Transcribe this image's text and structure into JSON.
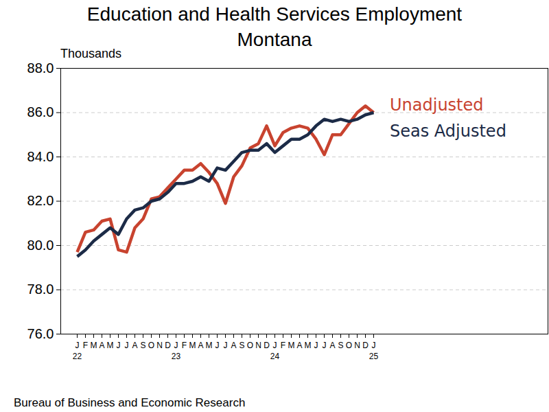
{
  "chart_data": {
    "type": "line",
    "title": "Education and Health Services Employment",
    "subtitle": "Montana",
    "ylabel": "Thousands",
    "caption": "Bureau of Business and Economic Research",
    "categories": [
      "J\n22",
      "F",
      "M",
      "A",
      "M",
      "J",
      "J",
      "A",
      "S",
      "O",
      "N",
      "D",
      "J\n23",
      "F",
      "M",
      "A",
      "M",
      "J",
      "J",
      "A",
      "S",
      "O",
      "N",
      "D",
      "J\n24",
      "F",
      "M",
      "A",
      "M",
      "J",
      "J",
      "A",
      "S",
      "O",
      "N",
      "D",
      "J\n25"
    ],
    "series": [
      {
        "name": "Unadjusted",
        "color": "#c8432f",
        "values": [
          79.7,
          80.6,
          80.7,
          81.1,
          81.2,
          79.8,
          79.7,
          80.8,
          81.2,
          82.1,
          82.2,
          82.6,
          83.0,
          83.4,
          83.4,
          83.7,
          83.3,
          82.8,
          81.9,
          83.1,
          83.6,
          84.4,
          84.6,
          85.4,
          84.5,
          85.1,
          85.3,
          85.4,
          85.3,
          84.8,
          84.1,
          85.0,
          85.0,
          85.5,
          86.0,
          86.3,
          86.0
        ]
      },
      {
        "name": "Seas Adjusted",
        "color": "#1c2b47",
        "values": [
          79.5,
          79.8,
          80.2,
          80.5,
          80.8,
          80.5,
          81.2,
          81.6,
          81.7,
          82.0,
          82.1,
          82.4,
          82.8,
          82.8,
          82.9,
          83.1,
          82.9,
          83.5,
          83.4,
          83.8,
          84.2,
          84.3,
          84.3,
          84.6,
          84.2,
          84.5,
          84.8,
          84.8,
          85.0,
          85.4,
          85.7,
          85.6,
          85.7,
          85.6,
          85.7,
          85.9,
          86.0
        ]
      }
    ],
    "ylim": [
      76,
      88
    ],
    "yticks": [
      {
        "value": 76,
        "label": "76.0"
      },
      {
        "value": 78,
        "label": "78.0"
      },
      {
        "value": 80,
        "label": "80.0"
      },
      {
        "value": 82,
        "label": "82.0"
      },
      {
        "value": 84,
        "label": "84.0"
      },
      {
        "value": 86,
        "label": "86.0"
      },
      {
        "value": 88,
        "label": "88.0"
      }
    ],
    "grid": true
  }
}
